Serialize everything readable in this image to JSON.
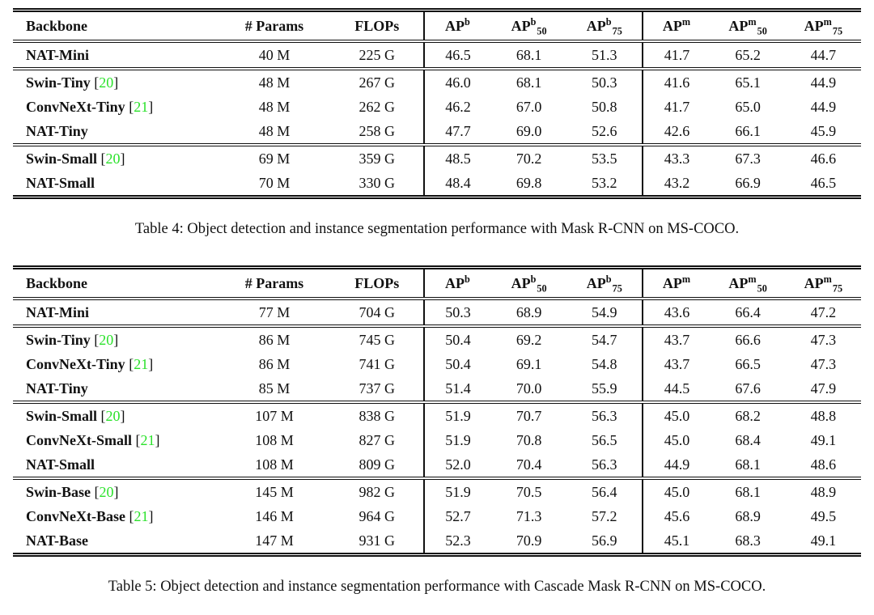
{
  "citation_color": "#2be22b",
  "tables": [
    {
      "name": "mask-rcnn-results",
      "caption": "Table 4: Object detection and instance segmentation performance with Mask R-CNN on MS-COCO.",
      "columns": [
        {
          "key": "backbone",
          "label": "Backbone"
        },
        {
          "key": "params",
          "label": "# Params"
        },
        {
          "key": "flops",
          "label": "FLOPs"
        },
        {
          "key": "ap-b",
          "base": "AP",
          "sup": "b",
          "divider": true
        },
        {
          "key": "ap-b-50",
          "base": "AP",
          "sup": "b",
          "sub": "50"
        },
        {
          "key": "ap-b-75",
          "base": "AP",
          "sup": "b",
          "sub": "75"
        },
        {
          "key": "ap-m",
          "base": "AP",
          "sup": "m",
          "divider": true
        },
        {
          "key": "ap-m-50",
          "base": "AP",
          "sup": "m",
          "sub": "50"
        },
        {
          "key": "ap-m-75",
          "base": "AP",
          "sup": "m",
          "sub": "75"
        }
      ],
      "groups": [
        {
          "rows": [
            {
              "backbone": "NAT-Mini",
              "cite": null,
              "params": "40 M",
              "flops": "225 G",
              "values": [
                "46.5",
                "68.1",
                "51.3",
                "41.7",
                "65.2",
                "44.7"
              ]
            }
          ]
        },
        {
          "rows": [
            {
              "backbone": "Swin-Tiny",
              "cite": "20",
              "params": "48 M",
              "flops": "267 G",
              "values": [
                "46.0",
                "68.1",
                "50.3",
                "41.6",
                "65.1",
                "44.9"
              ]
            },
            {
              "backbone": "ConvNeXt-Tiny",
              "cite": "21",
              "params": "48 M",
              "flops": "262 G",
              "values": [
                "46.2",
                "67.0",
                "50.8",
                "41.7",
                "65.0",
                "44.9"
              ]
            },
            {
              "backbone": "NAT-Tiny",
              "cite": null,
              "params": "48 M",
              "flops": "258 G",
              "values": [
                "47.7",
                "69.0",
                "52.6",
                "42.6",
                "66.1",
                "45.9"
              ]
            }
          ]
        },
        {
          "rows": [
            {
              "backbone": "Swin-Small",
              "cite": "20",
              "params": "69 M",
              "flops": "359 G",
              "values": [
                "48.5",
                "70.2",
                "53.5",
                "43.3",
                "67.3",
                "46.6"
              ]
            },
            {
              "backbone": "NAT-Small",
              "cite": null,
              "params": "70 M",
              "flops": "330 G",
              "values": [
                "48.4",
                "69.8",
                "53.2",
                "43.2",
                "66.9",
                "46.5"
              ]
            }
          ]
        }
      ]
    },
    {
      "name": "cascade-mask-rcnn-results",
      "caption": "Table 5: Object detection and instance segmentation performance with Cascade Mask R-CNN on MS-COCO.",
      "columns": [
        {
          "key": "backbone",
          "label": "Backbone"
        },
        {
          "key": "params",
          "label": "# Params"
        },
        {
          "key": "flops",
          "label": "FLOPs"
        },
        {
          "key": "ap-b",
          "base": "AP",
          "sup": "b",
          "divider": true
        },
        {
          "key": "ap-b-50",
          "base": "AP",
          "sup": "b",
          "sub": "50"
        },
        {
          "key": "ap-b-75",
          "base": "AP",
          "sup": "b",
          "sub": "75"
        },
        {
          "key": "ap-m",
          "base": "AP",
          "sup": "m",
          "divider": true
        },
        {
          "key": "ap-m-50",
          "base": "AP",
          "sup": "m",
          "sub": "50"
        },
        {
          "key": "ap-m-75",
          "base": "AP",
          "sup": "m",
          "sub": "75"
        }
      ],
      "groups": [
        {
          "rows": [
            {
              "backbone": "NAT-Mini",
              "cite": null,
              "params": "77 M",
              "flops": "704 G",
              "values": [
                "50.3",
                "68.9",
                "54.9",
                "43.6",
                "66.4",
                "47.2"
              ]
            }
          ]
        },
        {
          "rows": [
            {
              "backbone": "Swin-Tiny",
              "cite": "20",
              "params": "86 M",
              "flops": "745 G",
              "values": [
                "50.4",
                "69.2",
                "54.7",
                "43.7",
                "66.6",
                "47.3"
              ]
            },
            {
              "backbone": "ConvNeXt-Tiny",
              "cite": "21",
              "params": "86 M",
              "flops": "741 G",
              "values": [
                "50.4",
                "69.1",
                "54.8",
                "43.7",
                "66.5",
                "47.3"
              ]
            },
            {
              "backbone": "NAT-Tiny",
              "cite": null,
              "params": "85 M",
              "flops": "737 G",
              "values": [
                "51.4",
                "70.0",
                "55.9",
                "44.5",
                "67.6",
                "47.9"
              ]
            }
          ]
        },
        {
          "rows": [
            {
              "backbone": "Swin-Small",
              "cite": "20",
              "params": "107 M",
              "flops": "838 G",
              "values": [
                "51.9",
                "70.7",
                "56.3",
                "45.0",
                "68.2",
                "48.8"
              ]
            },
            {
              "backbone": "ConvNeXt-Small",
              "cite": "21",
              "params": "108 M",
              "flops": "827 G",
              "values": [
                "51.9",
                "70.8",
                "56.5",
                "45.0",
                "68.4",
                "49.1"
              ]
            },
            {
              "backbone": "NAT-Small",
              "cite": null,
              "params": "108 M",
              "flops": "809 G",
              "values": [
                "52.0",
                "70.4",
                "56.3",
                "44.9",
                "68.1",
                "48.6"
              ]
            }
          ]
        },
        {
          "rows": [
            {
              "backbone": "Swin-Base",
              "cite": "20",
              "params": "145 M",
              "flops": "982 G",
              "values": [
                "51.9",
                "70.5",
                "56.4",
                "45.0",
                "68.1",
                "48.9"
              ]
            },
            {
              "backbone": "ConvNeXt-Base",
              "cite": "21",
              "params": "146 M",
              "flops": "964 G",
              "values": [
                "52.7",
                "71.3",
                "57.2",
                "45.6",
                "68.9",
                "49.5"
              ]
            },
            {
              "backbone": "NAT-Base",
              "cite": null,
              "params": "147 M",
              "flops": "931 G",
              "values": [
                "52.3",
                "70.9",
                "56.9",
                "45.1",
                "68.3",
                "49.1"
              ]
            }
          ]
        }
      ]
    }
  ]
}
